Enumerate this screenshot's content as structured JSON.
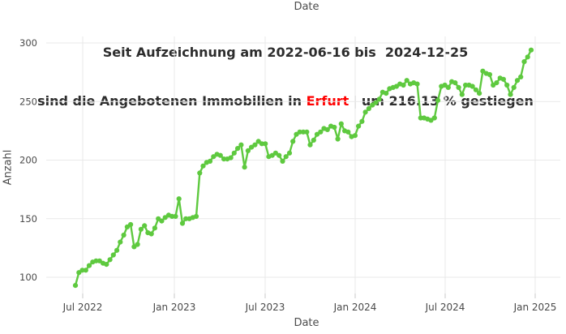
{
  "title": {
    "line1": "Seit Aufzeichnung am 2022-06-16 bis  2024-12-25",
    "line2_prefix": "sind die Angebotenen Immobilien in ",
    "city": "Erfurt",
    "separator": " | ",
    "line2_suffix": "um 216.13 % gestiegen",
    "city_color": "#ff0000",
    "start_date": "2022-06-16",
    "end_date": "2024-12-25",
    "percent_change": "216.13"
  },
  "chart_data": {
    "type": "line",
    "title": "Seit Aufzeichnung am 2022-06-16 bis 2024-12-25 sind die Angebotenen Immobilien in Erfurt um 216.13 % gestiegen",
    "xlabel": "Date",
    "top_axis_label": "Date",
    "ylabel": "Anzahl",
    "x_tick_labels": [
      "Jul 2022",
      "Jan 2023",
      "Jul 2023",
      "Jan 2024",
      "Jul 2024",
      "Jan 2025"
    ],
    "y_ticks": [
      100,
      150,
      200,
      250,
      300
    ],
    "ylim": [
      83,
      306
    ],
    "grid": true,
    "legend_position": "none",
    "markers": true,
    "line_color": "#5ec93f",
    "grid_color": "#e9e9e9",
    "series": [
      {
        "name": "Anzahl",
        "color": "#5ec93f",
        "dates": [
          "2022-06-16",
          "2022-06-23",
          "2022-06-30",
          "2022-07-07",
          "2022-07-14",
          "2022-07-21",
          "2022-07-28",
          "2022-08-04",
          "2022-08-11",
          "2022-08-18",
          "2022-08-25",
          "2022-09-01",
          "2022-09-08",
          "2022-09-15",
          "2022-09-22",
          "2022-09-29",
          "2022-10-06",
          "2022-10-13",
          "2022-10-20",
          "2022-10-27",
          "2022-11-03",
          "2022-11-10",
          "2022-11-17",
          "2022-11-24",
          "2022-12-01",
          "2022-12-08",
          "2022-12-15",
          "2022-12-22",
          "2022-12-29",
          "2023-01-05",
          "2023-01-12",
          "2023-01-19",
          "2023-01-26",
          "2023-02-02",
          "2023-02-09",
          "2023-02-16",
          "2023-02-23",
          "2023-03-02",
          "2023-03-09",
          "2023-03-16",
          "2023-03-23",
          "2023-03-30",
          "2023-04-06",
          "2023-04-13",
          "2023-04-20",
          "2023-04-27",
          "2023-05-04",
          "2023-05-11",
          "2023-05-18",
          "2023-05-25",
          "2023-06-01",
          "2023-06-08",
          "2023-06-15",
          "2023-06-22",
          "2023-06-29",
          "2023-07-06",
          "2023-07-13",
          "2023-07-20",
          "2023-07-27",
          "2023-08-03",
          "2023-08-10",
          "2023-08-17",
          "2023-08-24",
          "2023-08-31",
          "2023-09-07",
          "2023-09-14",
          "2023-09-21",
          "2023-09-28",
          "2023-10-05",
          "2023-10-12",
          "2023-10-19",
          "2023-10-26",
          "2023-11-02",
          "2023-11-09",
          "2023-11-16",
          "2023-11-23",
          "2023-11-30",
          "2023-12-07",
          "2023-12-14",
          "2023-12-21",
          "2023-12-28",
          "2024-01-04",
          "2024-01-11",
          "2024-01-18",
          "2024-01-25",
          "2024-02-01",
          "2024-02-08",
          "2024-02-15",
          "2024-02-22",
          "2024-02-29",
          "2024-03-07",
          "2024-03-14",
          "2024-03-21",
          "2024-03-28",
          "2024-04-04",
          "2024-04-11",
          "2024-04-18",
          "2024-04-25",
          "2024-05-02",
          "2024-05-09",
          "2024-05-16",
          "2024-05-23",
          "2024-05-30",
          "2024-06-06",
          "2024-06-13",
          "2024-06-20",
          "2024-06-27",
          "2024-07-04",
          "2024-07-11",
          "2024-07-18",
          "2024-07-25",
          "2024-08-01",
          "2024-08-08",
          "2024-08-15",
          "2024-08-22",
          "2024-08-29",
          "2024-09-05",
          "2024-09-12",
          "2024-09-19",
          "2024-09-26",
          "2024-10-03",
          "2024-10-10",
          "2024-10-17",
          "2024-10-24",
          "2024-10-31",
          "2024-11-07",
          "2024-11-14",
          "2024-11-21",
          "2024-11-28",
          "2024-12-05",
          "2024-12-12",
          "2024-12-19",
          "2024-12-25"
        ],
        "values": [
          93,
          104,
          106,
          106,
          110,
          113,
          114,
          114,
          112,
          111,
          115,
          119,
          123,
          130,
          136,
          143,
          145,
          126,
          128,
          141,
          144,
          138,
          137,
          142,
          150,
          148,
          151,
          153,
          152,
          152,
          167,
          146,
          150,
          150,
          151,
          152,
          189,
          195,
          198,
          199,
          203,
          205,
          204,
          201,
          201,
          202,
          206,
          210,
          213,
          194,
          208,
          211,
          213,
          216,
          214,
          214,
          203,
          204,
          206,
          204,
          199,
          203,
          206,
          216,
          222,
          224,
          224,
          224,
          213,
          217,
          222,
          224,
          227,
          226,
          229,
          228,
          218,
          231,
          225,
          224,
          220,
          221,
          229,
          233,
          241,
          244,
          247,
          249,
          252,
          258,
          257,
          261,
          262,
          263,
          265,
          264,
          268,
          265,
          266,
          265,
          236,
          236,
          235,
          234,
          236,
          251,
          263,
          264,
          262,
          267,
          266,
          262,
          256,
          264,
          264,
          263,
          260,
          257,
          276,
          274,
          273,
          264,
          266,
          270,
          269,
          264,
          256,
          262,
          268,
          271,
          284,
          288,
          294
        ]
      }
    ]
  }
}
